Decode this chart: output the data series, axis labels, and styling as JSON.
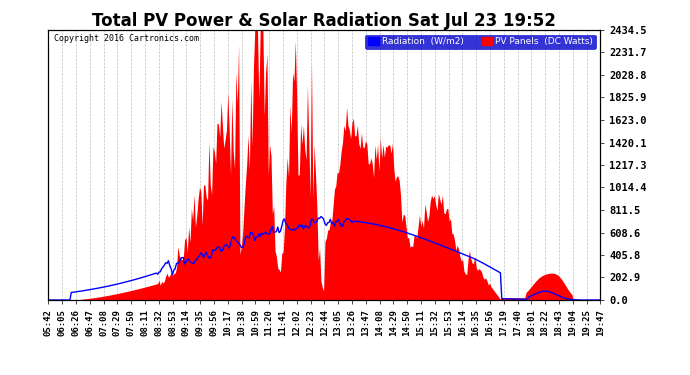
{
  "title": "Total PV Power & Solar Radiation Sat Jul 23 19:52",
  "copyright_text": "Copyright 2016 Cartronics.com",
  "legend_labels": [
    "Radiation  (W/m2)",
    "PV Panels  (DC Watts)"
  ],
  "legend_colors": [
    "#0000ff",
    "#ff0000"
  ],
  "background_color": "#ffffff",
  "plot_bg_color": "#ffffff",
  "grid_color": "#b0b0b0",
  "pv_color": "#ff0000",
  "radiation_color": "#0000ff",
  "ymin": 0.0,
  "ymax": 2434.5,
  "ytick_values": [
    0.0,
    202.9,
    405.8,
    608.6,
    811.5,
    1014.4,
    1217.3,
    1420.1,
    1623.0,
    1825.9,
    2028.8,
    2231.7,
    2434.5
  ],
  "time_labels": [
    "05:42",
    "06:05",
    "06:26",
    "06:47",
    "07:08",
    "07:29",
    "07:50",
    "08:11",
    "08:32",
    "08:53",
    "09:14",
    "09:35",
    "09:56",
    "10:17",
    "10:38",
    "10:59",
    "11:20",
    "11:41",
    "12:02",
    "12:23",
    "12:44",
    "13:05",
    "13:26",
    "13:47",
    "14:08",
    "14:29",
    "14:50",
    "15:11",
    "15:32",
    "15:53",
    "16:14",
    "16:35",
    "16:56",
    "17:19",
    "17:40",
    "18:01",
    "18:22",
    "18:43",
    "19:04",
    "19:25",
    "19:47"
  ],
  "xlabel_fontsize": 6.5,
  "ylabel_fontsize": 7.5,
  "title_fontsize": 12
}
